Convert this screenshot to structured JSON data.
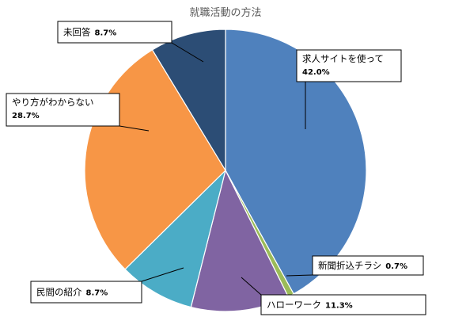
{
  "chart_data": {
    "type": "pie",
    "title": "就職活動の方法",
    "start_angle_deg": 0,
    "direction": "clockwise",
    "slices": [
      {
        "label": "求人サイトを使って",
        "value": 42.0,
        "pct_text": "42.0%",
        "color": "#4F81BD"
      },
      {
        "label": "新聞折込チラシ",
        "value": 0.7,
        "pct_text": "0.7%",
        "color": "#9BBB59"
      },
      {
        "label": "ハローワーク",
        "value": 11.3,
        "pct_text": "11.3%",
        "color": "#8064A2"
      },
      {
        "label": "民間の紹介",
        "value": 8.7,
        "pct_text": "8.7%",
        "color": "#4BACC6"
      },
      {
        "label": "やり方がわからない",
        "value": 28.7,
        "pct_text": "28.7%",
        "color": "#F79646"
      },
      {
        "label": "未回答",
        "value": 8.7,
        "pct_text": "8.7%",
        "color": "#2C4D75"
      }
    ],
    "legend": "none",
    "data_labels": "callout boxes with name and percentage"
  }
}
